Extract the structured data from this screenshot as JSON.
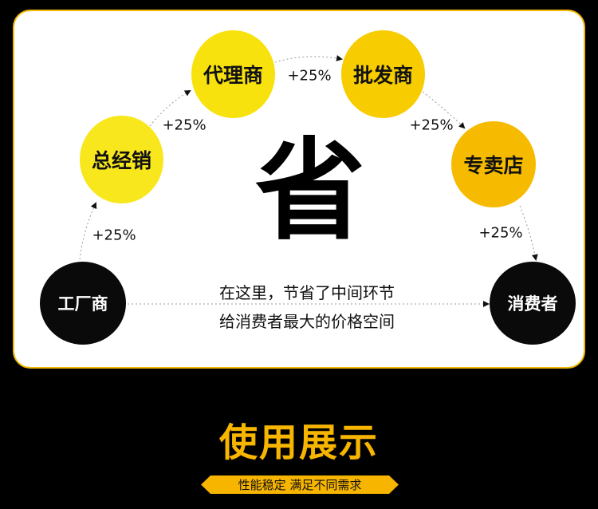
{
  "diagram": {
    "nodes": [
      {
        "id": "factory",
        "label": "工厂商",
        "color": "#0a0a0a"
      },
      {
        "id": "general",
        "label": "总经销",
        "color": "#f8e71c"
      },
      {
        "id": "agent",
        "label": "代理商",
        "color": "#f8e20e"
      },
      {
        "id": "wholesale",
        "label": "批发商",
        "color": "#f7cc00"
      },
      {
        "id": "store",
        "label": "专卖店",
        "color": "#f6bb00"
      },
      {
        "id": "consumer",
        "label": "消费者",
        "color": "#0a0a0a"
      }
    ],
    "markups": [
      "+25%",
      "+25%",
      "+25%",
      "+25%",
      "+25%"
    ],
    "center_char": "省",
    "message_lines": [
      "在这里，节省了中间环节",
      "给消费者最大的价格空间"
    ],
    "accent": "#f7b500"
  },
  "footer": {
    "title": "使用展示",
    "subtitle": "性能稳定  满足不同需求"
  }
}
